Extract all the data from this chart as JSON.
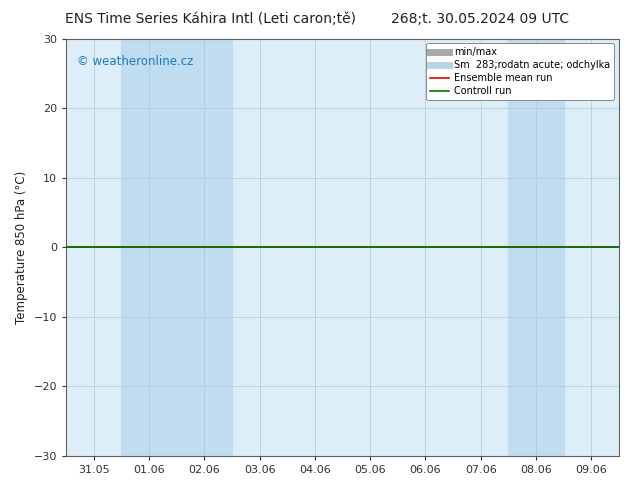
{
  "title_left": "ENS Time Series Káhira Intl (Leti caron;tě)",
  "title_right": "268;t. 30.05.2024 09 UTC",
  "ylabel": "Temperature 850 hPa (°C)",
  "ylim": [
    -30,
    30
  ],
  "yticks": [
    -30,
    -20,
    -10,
    0,
    10,
    20,
    30
  ],
  "watermark": "© weatheronline.cz",
  "watermark_color": "#1a7abf",
  "background_color": "#ffffff",
  "plot_bg_color": "#ddeef8",
  "shaded_regions": [
    {
      "xstart": 1,
      "xend": 3,
      "color": "#c0ddf0"
    },
    {
      "xstart": 8,
      "xend": 9,
      "color": "#c0ddf0"
    }
  ],
  "x_tick_labels": [
    "31.05",
    "01.06",
    "02.06",
    "03.06",
    "04.06",
    "05.06",
    "06.06",
    "07.06",
    "08.06",
    "09.06"
  ],
  "x_tick_positions": [
    0,
    1,
    2,
    3,
    4,
    5,
    6,
    7,
    8,
    9
  ],
  "flat_line_y": 0.0,
  "flat_line_color_green": "#007700",
  "flat_line_color_red": "#dd0000",
  "legend_entries": [
    {
      "label": "min/max",
      "color": "#a8a8a8",
      "style": "solid",
      "lw": 5
    },
    {
      "label": "Sm  283;rodatn acute; odchylka",
      "color": "#b8d4e8",
      "style": "solid",
      "lw": 5
    },
    {
      "label": "Ensemble mean run",
      "color": "#dd0000",
      "style": "solid",
      "lw": 1.2
    },
    {
      "label": "Controll run",
      "color": "#007700",
      "style": "solid",
      "lw": 1.2
    }
  ],
  "border_color": "#606060",
  "tick_color": "#303030",
  "grid_color": "#b0c8d8",
  "font_color": "#202020",
  "title_fontsize": 10,
  "tick_fontsize": 8,
  "label_fontsize": 8.5,
  "legend_fontsize": 7,
  "watermark_fontsize": 8.5
}
